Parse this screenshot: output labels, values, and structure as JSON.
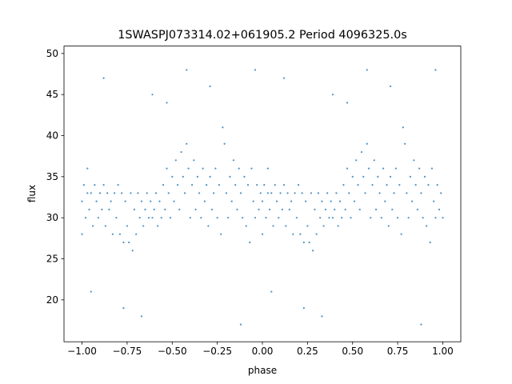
{
  "chart_data": {
    "type": "scatter",
    "title": "1SWASPJ073314.02+061905.2 Period 4096325.0s",
    "x_label": "phase",
    "y_label": "flux",
    "xlim": [
      -1.1,
      1.1
    ],
    "ylim": [
      14.9,
      50.9
    ],
    "xticks": [
      {
        "value": -1,
        "label": "−1.00"
      },
      {
        "value": -0.75,
        "label": "−0.75"
      },
      {
        "value": -0.5,
        "label": "−0.50"
      },
      {
        "value": -0.25,
        "label": "−0.25"
      },
      {
        "value": 0,
        "label": "0.00"
      },
      {
        "value": 0.25,
        "label": "0.25"
      },
      {
        "value": 0.5,
        "label": "0.50"
      },
      {
        "value": 0.75,
        "label": "0.75"
      },
      {
        "value": 1,
        "label": "1.00"
      }
    ],
    "yticks": [
      20,
      25,
      30,
      35,
      40,
      45,
      50
    ],
    "series": [
      {
        "color": "#1f77b4",
        "x": [
          -1,
          -1,
          -0.99,
          -0.98,
          -0.97,
          -0.97,
          -0.96,
          -0.95,
          -0.94,
          -0.93,
          -0.92,
          -0.91,
          -0.9,
          -0.89,
          -0.88,
          -0.87,
          -0.86,
          -0.85,
          -0.84,
          -0.83,
          -0.82,
          -0.81,
          -0.8,
          -0.79,
          -0.78,
          -0.77,
          -0.76,
          -0.75,
          -0.74,
          -0.73,
          -0.72,
          -0.71,
          -0.7,
          -0.69,
          -0.68,
          -0.67,
          -0.66,
          -0.65,
          -0.64,
          -0.63,
          -0.62,
          -0.61,
          -0.6,
          -0.59,
          -0.58,
          -0.57,
          -0.56,
          -0.55,
          -0.54,
          -0.53,
          -0.52,
          -0.51,
          -0.5,
          -0.49,
          -0.48,
          -0.47,
          -0.46,
          -0.45,
          -0.44,
          -0.43,
          -0.42,
          -0.41,
          -0.4,
          -0.39,
          -0.38,
          -0.37,
          -0.36,
          -0.35,
          -0.34,
          -0.33,
          -0.32,
          -0.31,
          -0.3,
          -0.29,
          -0.28,
          -0.27,
          -0.26,
          -0.25,
          -0.24,
          -0.23,
          -0.22,
          -0.21,
          -0.2,
          -0.19,
          -0.18,
          -0.17,
          -0.16,
          -0.15,
          -0.14,
          -0.13,
          -0.12,
          -0.11,
          -0.1,
          -0.09,
          -0.08,
          -0.07,
          -0.06,
          -0.05,
          -0.04,
          -0.03,
          -0.02,
          -0.01,
          -0.88,
          -0.67,
          -0.42,
          -0.29,
          -0.77,
          -0.53,
          -0.12,
          -0.04,
          -0.61,
          -0.95,
          0,
          0,
          0.01,
          0.02,
          0.03,
          0.03,
          0.04,
          0.05,
          0.06,
          0.07,
          0.08,
          0.09,
          0.1,
          0.11,
          0.12,
          0.13,
          0.14,
          0.15,
          0.16,
          0.17,
          0.18,
          0.19,
          0.2,
          0.21,
          0.22,
          0.23,
          0.24,
          0.25,
          0.26,
          0.27,
          0.28,
          0.29,
          0.3,
          0.31,
          0.32,
          0.33,
          0.34,
          0.35,
          0.36,
          0.37,
          0.38,
          0.39,
          0.4,
          0.41,
          0.42,
          0.43,
          0.44,
          0.45,
          0.46,
          0.47,
          0.48,
          0.49,
          0.5,
          0.51,
          0.52,
          0.53,
          0.54,
          0.55,
          0.56,
          0.57,
          0.58,
          0.59,
          0.6,
          0.61,
          0.62,
          0.63,
          0.64,
          0.65,
          0.66,
          0.67,
          0.68,
          0.69,
          0.7,
          0.71,
          0.72,
          0.73,
          0.74,
          0.75,
          0.76,
          0.77,
          0.78,
          0.79,
          0.8,
          0.81,
          0.82,
          0.83,
          0.84,
          0.85,
          0.86,
          0.87,
          0.88,
          0.89,
          0.9,
          0.91,
          0.92,
          0.93,
          0.94,
          0.95,
          0.96,
          0.97,
          0.98,
          0.99,
          1,
          0.12,
          0.33,
          0.58,
          0.71,
          0.23,
          0.47,
          0.88,
          0.96,
          0.39,
          0.05
        ],
        "values": [
          32,
          28,
          34,
          30,
          36,
          33,
          31,
          33,
          29,
          34,
          32,
          30,
          33,
          31,
          34,
          29,
          33,
          31,
          32,
          28,
          33,
          30,
          34,
          28,
          33,
          27,
          32,
          29,
          27,
          33,
          26,
          31,
          28,
          33,
          30,
          32,
          29,
          31,
          33,
          30,
          32,
          30,
          31,
          33,
          29,
          32,
          30,
          34,
          31,
          36,
          33,
          30,
          35,
          32,
          37,
          34,
          31,
          38,
          35,
          33,
          39,
          36,
          30,
          34,
          37,
          31,
          35,
          33,
          30,
          36,
          32,
          34,
          29,
          35,
          31,
          33,
          36,
          30,
          34,
          28,
          41,
          39,
          33,
          30,
          35,
          32,
          37,
          34,
          31,
          36,
          33,
          30,
          35,
          29,
          34,
          27,
          36,
          32,
          30,
          34,
          31,
          33,
          47,
          18,
          48,
          46,
          19,
          44,
          17,
          48,
          45,
          21,
          32,
          28,
          34,
          30,
          36,
          33,
          31,
          33,
          29,
          34,
          32,
          30,
          33,
          31,
          34,
          29,
          33,
          31,
          32,
          28,
          33,
          30,
          34,
          28,
          33,
          27,
          32,
          29,
          27,
          33,
          26,
          31,
          28,
          33,
          30,
          32,
          29,
          31,
          33,
          30,
          32,
          30,
          31,
          33,
          29,
          32,
          30,
          34,
          31,
          36,
          33,
          30,
          35,
          32,
          37,
          34,
          31,
          38,
          35,
          33,
          39,
          36,
          30,
          34,
          37,
          31,
          35,
          33,
          30,
          36,
          32,
          34,
          29,
          35,
          31,
          33,
          36,
          30,
          34,
          28,
          41,
          39,
          33,
          30,
          35,
          32,
          37,
          34,
          31,
          36,
          33,
          30,
          35,
          29,
          34,
          27,
          36,
          32,
          30,
          34,
          31,
          33,
          30,
          47,
          18,
          48,
          46,
          19,
          44,
          17,
          48,
          45,
          21
        ]
      }
    ]
  }
}
